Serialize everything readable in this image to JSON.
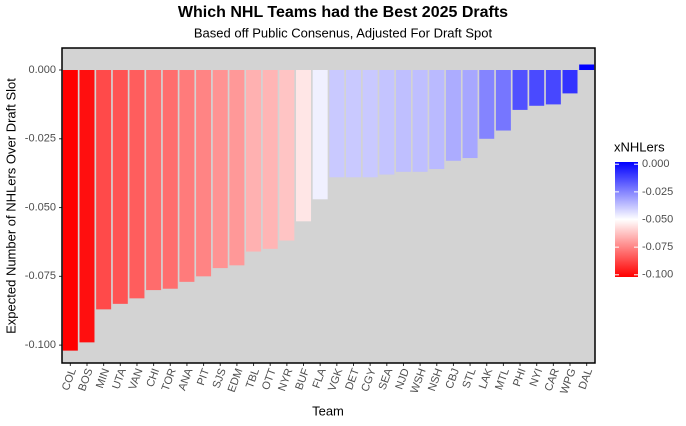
{
  "chart_data": {
    "type": "bar",
    "title": "Which NHL Teams had the Best 2025 Drafts",
    "subtitle": "Based off Public Consenus, Adjusted For Draft Spot",
    "x_label": "Team",
    "y_label": "Expected Number of NHLers Over Draft Slot",
    "categories": [
      "COL",
      "BOS",
      "MIN",
      "UTA",
      "VAN",
      "CHI",
      "TOR",
      "ANA",
      "PIT",
      "SJS",
      "EDM",
      "TBL",
      "OTT",
      "NYR",
      "BUF",
      "FLA",
      "VGK",
      "DET",
      "CGY",
      "SEA",
      "NJD",
      "WSH",
      "NSH",
      "CBJ",
      "STL",
      "LAK",
      "MTL",
      "PHI",
      "NYI",
      "CAR",
      "WPG",
      "DAL"
    ],
    "values": [
      -0.102,
      -0.099,
      -0.087,
      -0.085,
      -0.083,
      -0.08,
      -0.0795,
      -0.077,
      -0.075,
      -0.072,
      -0.071,
      -0.066,
      -0.065,
      -0.062,
      -0.055,
      -0.047,
      -0.039,
      -0.039,
      -0.039,
      -0.038,
      -0.037,
      -0.037,
      -0.036,
      -0.033,
      -0.032,
      -0.025,
      -0.022,
      -0.0145,
      -0.013,
      -0.0125,
      -0.0085,
      0.002
    ],
    "ylim": [
      -0.1065,
      0.008
    ],
    "yticks": [
      {
        "value": 0,
        "label": "0.000"
      },
      {
        "value": -0.025,
        "label": "-0.025"
      },
      {
        "value": -0.05,
        "label": "-0.050"
      },
      {
        "value": -0.075,
        "label": "-0.075"
      },
      {
        "value": -0.1,
        "label": "-0.100"
      }
    ],
    "grid": false,
    "background": "#d3d3d3",
    "legend": {
      "title": "xNHLers",
      "position": "right",
      "limits": [
        -0.102,
        0.002
      ],
      "midpoint": -0.05,
      "colors": [
        "#ff0000",
        "#ffffff",
        "#0000ff"
      ],
      "ticks": [
        {
          "value": 0,
          "label": "0.000"
        },
        {
          "value": -0.025,
          "label": "-0.025"
        },
        {
          "value": -0.05,
          "label": "-0.050"
        },
        {
          "value": -0.075,
          "label": "-0.075"
        },
        {
          "value": -0.1,
          "label": "-0.100"
        }
      ]
    }
  }
}
